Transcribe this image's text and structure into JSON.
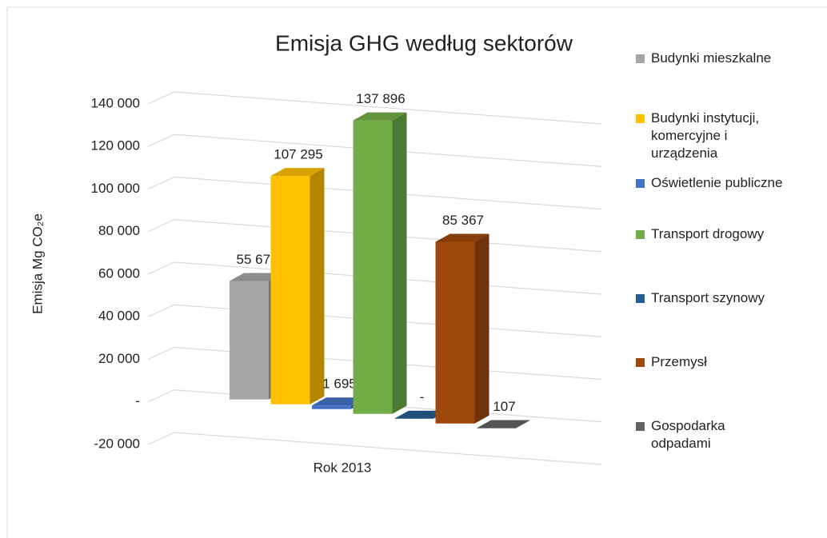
{
  "chart_data": {
    "type": "bar3d",
    "title": "Emisja GHG według sektorów",
    "y_label": "Emisja Mg CO₂e",
    "categories": [
      "Rok 2013"
    ],
    "series": [
      {
        "name": "Budynki mieszkalne",
        "color": "#a5a5a5",
        "values": [
          55679
        ],
        "value_labels": [
          "55 679"
        ]
      },
      {
        "name": "Budynki instytucji, komercyjne i urządzenia",
        "color": "#ffc000",
        "values": [
          107295
        ],
        "value_labels": [
          "107 295"
        ]
      },
      {
        "name": "Oświetlenie publiczne",
        "color": "#4472c4",
        "values": [
          1695
        ],
        "value_labels": [
          "1 695"
        ]
      },
      {
        "name": "Transport drogowy",
        "color": "#70ad47",
        "values": [
          137896
        ],
        "value_labels": [
          "137 896"
        ]
      },
      {
        "name": "Transport szynowy",
        "color": "#255e91",
        "values": [
          0
        ],
        "value_labels": [
          "-"
        ]
      },
      {
        "name": "Przemysł",
        "color": "#9e480e",
        "values": [
          85367
        ],
        "value_labels": [
          "85 367"
        ]
      },
      {
        "name": "Gospodarka odpadami",
        "color": "#636363",
        "values": [
          107
        ],
        "value_labels": [
          "107"
        ]
      }
    ],
    "ylim": [
      -20000,
      140000
    ],
    "yticks": [
      {
        "value": -20000,
        "label": "-20 000"
      },
      {
        "value": 0,
        "label": "-"
      },
      {
        "value": 20000,
        "label": "20 000"
      },
      {
        "value": 40000,
        "label": "40 000"
      },
      {
        "value": 60000,
        "label": "60 000"
      },
      {
        "value": 80000,
        "label": "80 000"
      },
      {
        "value": 100000,
        "label": "100 000"
      },
      {
        "value": 120000,
        "label": "120 000"
      },
      {
        "value": 140000,
        "label": "140 000"
      }
    ],
    "grid": true
  }
}
